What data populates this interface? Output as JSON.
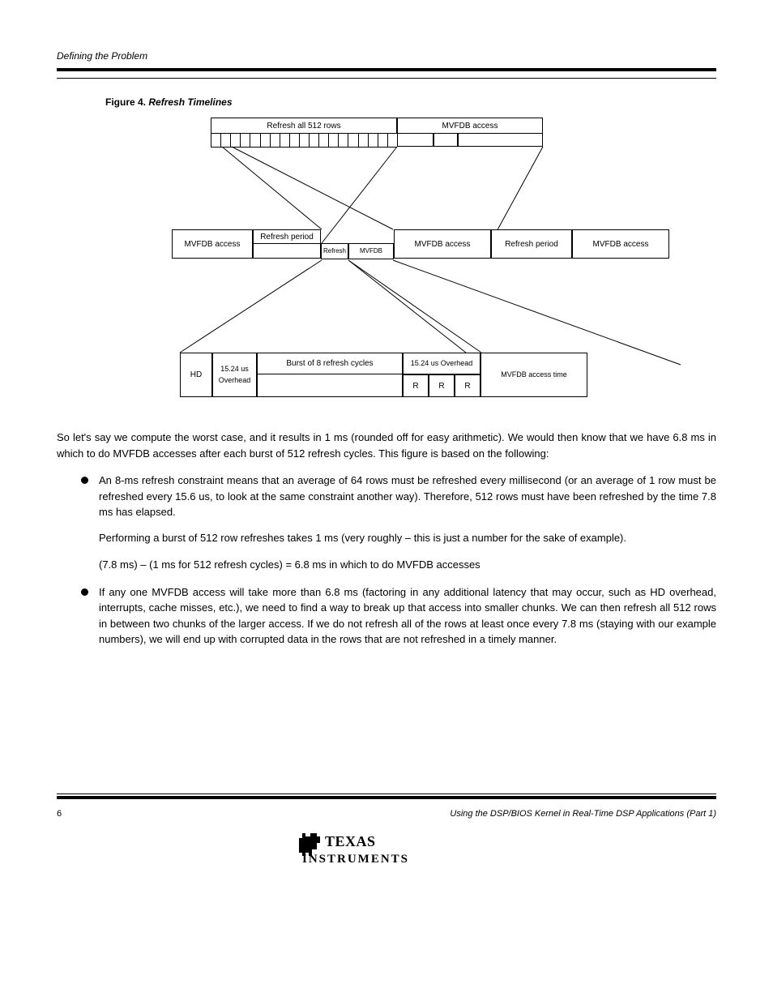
{
  "header_label": "Defining the Problem",
  "figure_title_prefix": "Figure 4.",
  "figure_title": "Refresh Timelines",
  "diagram": {
    "top_row": {
      "left_label": "Refresh all 512 rows",
      "right_label": "MVFDB access",
      "tick_count": 19
    },
    "middle_row": {
      "cells": [
        "MVFDB access",
        "Refresh period",
        "MVFDB access",
        "Refresh period",
        "MVFDB access"
      ],
      "mid_sub_left": "Refresh",
      "mid_sub_right": "MVFDB"
    },
    "bottom_row": {
      "cells": [
        "HD",
        "15.24 us Overhead",
        "Burst of 8 refresh cycles",
        "15.24 us Overhead",
        "MVFDB access time"
      ],
      "mid_sub": [
        "R",
        "R",
        "R"
      ]
    }
  },
  "body": {
    "p1": "So let's say we compute the worst case, and it results in 1 ms (rounded off for easy arithmetic). We would then know that we have 6.8 ms in which to do MVFDB accesses after each burst of 512 refresh cycles. This figure is based on the following:",
    "bullet1_p1": "An 8-ms refresh constraint means that an average of 64 rows must be refreshed every millisecond (or an average of 1 row must be refreshed every 15.6 us, to look at the same constraint another way). Therefore, 512 rows must have been refreshed by the time 7.8 ms has elapsed.",
    "bullet1_p2": "Performing a burst of 512 row refreshes takes 1 ms (very roughly – this is just a number for the sake of example).",
    "sub_indent": "(7.8 ms) – (1 ms for 512 refresh cycles) = 6.8 ms in which to do MVFDB accesses",
    "bullet2": "If any one MVFDB access will take more than 6.8 ms (factoring in any additional latency that may occur, such as HD overhead, interrupts, cache misses, etc.), we need to find a way to break up that access into smaller chunks. We can then refresh all 512 rows in between two chunks of the larger access. If we do not refresh all of the rows at least once every 7.8 ms (staying with our example numbers), we will end up with corrupted data in the rows that are not refreshed in a timely manner."
  },
  "footer": {
    "page_number": "6",
    "doc_title": "Using the DSP/BIOS Kernel in Real-Time DSP Applications (Part 1)"
  }
}
